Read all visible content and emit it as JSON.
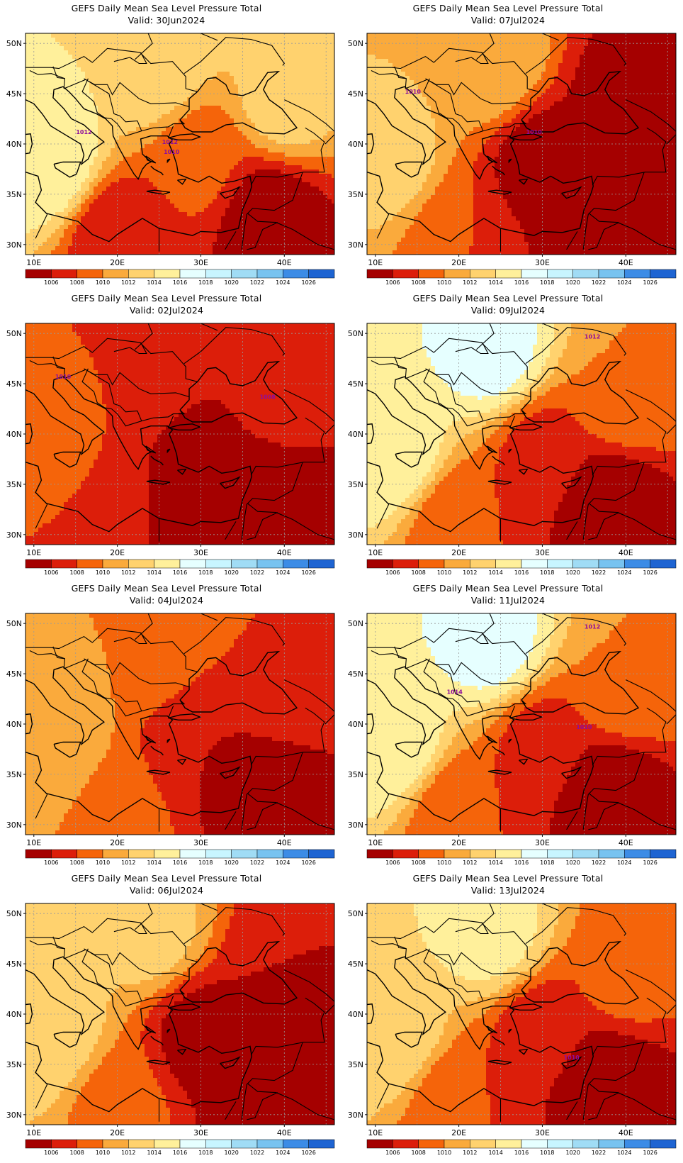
{
  "colors": {
    "c1004": "#a50000",
    "c1006": "#dc1e0a",
    "c1008": "#f5640a",
    "c1010": "#faaa3c",
    "c1012": "#ffd26e",
    "c1014": "#fff09b",
    "c1016": "#e6ffff",
    "c1018": "#c8f5ff",
    "c1020": "#a0dcf5",
    "c1022": "#78c3f0",
    "c1024": "#3c8ce6",
    "c1026": "#1e64d2",
    "contour": "#9b1faa",
    "coast": "#000000",
    "grid": "#9a9a9a"
  },
  "axes": {
    "lon_ticks": [
      "10E",
      "20E",
      "30E",
      "40E"
    ],
    "lat_ticks": [
      "50N",
      "45N",
      "40N",
      "35N",
      "30N"
    ]
  },
  "colorbar": {
    "labels": [
      "1006",
      "1008",
      "1010",
      "1012",
      "1014",
      "1016",
      "1018",
      "1020",
      "1022",
      "1024",
      "1026"
    ]
  },
  "panels": [
    {
      "id": "p1",
      "title": "GEFS Daily Mean Sea Level Pressure Total",
      "valid": "Valid:  30Jun2024",
      "contour_labels": [
        {
          "text": "1012"
        },
        {
          "text": "1012"
        },
        {
          "text": "1010"
        }
      ],
      "levels": {
        "west": 1015,
        "north": 1013,
        "east": 1012,
        "southeast": 1003,
        "south": 1005
      }
    },
    {
      "id": "p2",
      "title": "GEFS Daily Mean Sea Level Pressure Total",
      "valid": "Valid:  07Jul2024",
      "contour_labels": [
        {
          "text": "1010"
        },
        {
          "text": "1010"
        }
      ],
      "levels": {
        "west": 1012,
        "north": 1011,
        "east": 1004,
        "southeast": 1003,
        "south": 1007
      }
    },
    {
      "id": "p3",
      "title": "GEFS Daily Mean Sea Level Pressure Total",
      "valid": "Valid:  02Jul2024",
      "contour_labels": [
        {
          "text": "1010"
        },
        {
          "text": "1008"
        }
      ],
      "levels": {
        "west": 1008,
        "north": 1007,
        "east": 1006,
        "southeast": 1003,
        "south": 1005
      }
    },
    {
      "id": "p4",
      "title": "GEFS Daily Mean Sea Level Pressure Total",
      "valid": "Valid:  09Jul2024",
      "contour_labels": [
        {
          "text": "1012"
        }
      ],
      "levels": {
        "west": 1015,
        "north": 1016,
        "east": 1009,
        "southeast": 1003,
        "south": 1007
      }
    },
    {
      "id": "p5",
      "title": "GEFS Daily Mean Sea Level Pressure Total",
      "valid": "Valid:  04Jul2024",
      "contour_labels": [],
      "levels": {
        "west": 1011,
        "north": 1009,
        "east": 1007,
        "southeast": 1003,
        "south": 1008
      }
    },
    {
      "id": "p6",
      "title": "GEFS Daily Mean Sea Level Pressure Total",
      "valid": "Valid:  11Jul2024",
      "contour_labels": [
        {
          "text": "1012"
        },
        {
          "text": "1014"
        },
        {
          "text": "1010"
        }
      ],
      "levels": {
        "west": 1015,
        "north": 1016,
        "east": 1009,
        "southeast": 1003,
        "south": 1007
      }
    },
    {
      "id": "p7",
      "title": "GEFS Daily Mean Sea Level Pressure Total",
      "valid": "Valid:  06Jul2024",
      "contour_labels": [],
      "levels": {
        "west": 1013,
        "north": 1012,
        "east": 1005,
        "southeast": 1003,
        "south": 1008
      }
    },
    {
      "id": "p8",
      "title": "GEFS Daily Mean Sea Level Pressure Total",
      "valid": "Valid:  13Jul2024",
      "contour_labels": [
        {
          "text": "1010"
        }
      ],
      "levels": {
        "west": 1013,
        "north": 1014,
        "east": 1008,
        "southeast": 1003,
        "south": 1007
      }
    }
  ]
}
